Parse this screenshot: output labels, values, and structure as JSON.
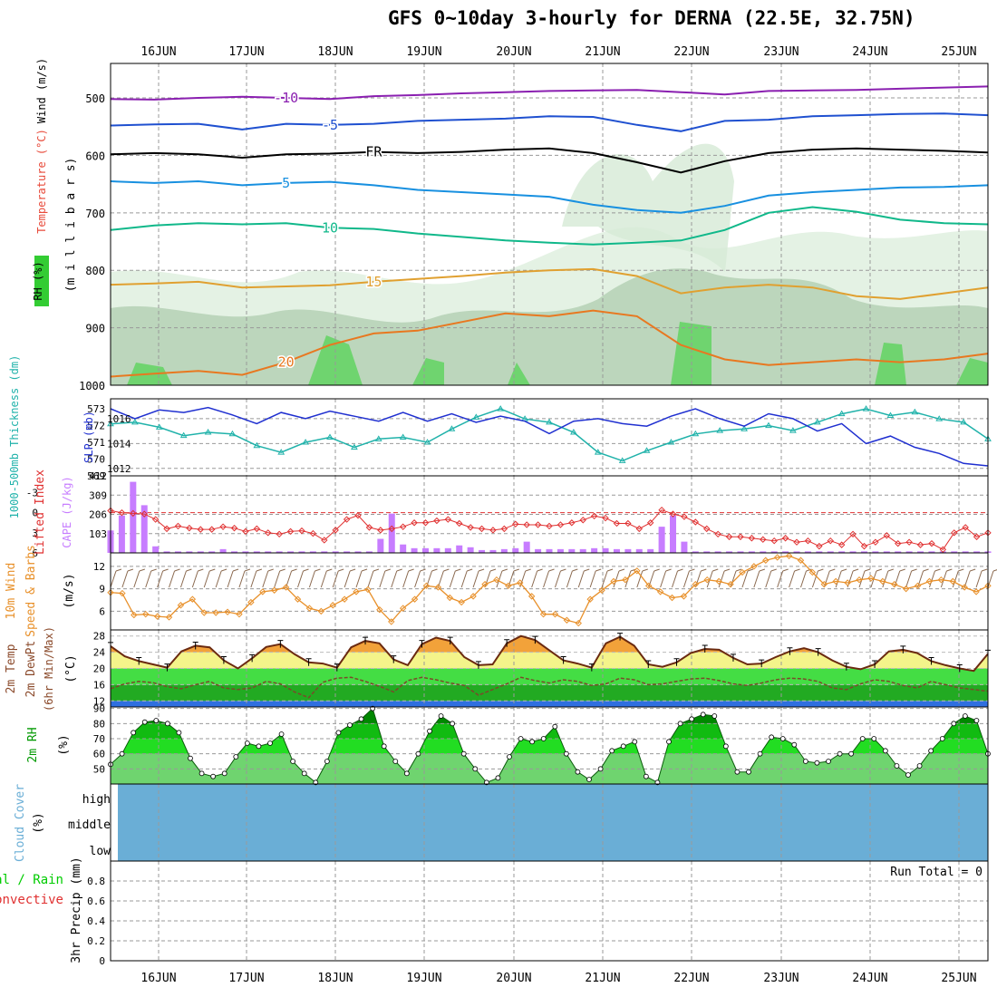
{
  "title": "GFS 0~10day 3-hourly for DERNA (22.5E, 32.75N)",
  "dates": [
    "16JUN",
    "17JUN",
    "18JUN",
    "19JUN",
    "20JUN",
    "21JUN",
    "22JUN",
    "23JUN",
    "24JUN",
    "25JUN"
  ],
  "colors": {
    "cyan": "#20b2aa",
    "blue": "#1f2fd0",
    "red": "#e03030",
    "purple": "#c77dff",
    "orange": "#e8902a",
    "brown": "#8b4a2b",
    "green": "#00cc00",
    "greenDark": "#009900",
    "cloudBlue": "#6aaed6",
    "grid": "#999999"
  },
  "chart_data": [
    {
      "type": "line",
      "panel": "upper-air",
      "labels": {
        "rh": "RH (%)",
        "temperature": "Temperature (°C)",
        "wind": "Wind (m/s)",
        "pressure": "(m i l l i b a r s)"
      },
      "y_ticks": [
        500,
        600,
        700,
        800,
        900,
        1000
      ],
      "ylim": [
        440,
        1000
      ],
      "isotherms": [
        {
          "label": "-10",
          "color": "#8a1fb0",
          "values": [
            502,
            503,
            500,
            498,
            500,
            502,
            497,
            495,
            492,
            490,
            488,
            487,
            486,
            490,
            494,
            488,
            487,
            486,
            484,
            482,
            480
          ]
        },
        {
          "label": "-5",
          "color": "#1f50d0",
          "values": [
            548,
            546,
            545,
            555,
            545,
            547,
            545,
            540,
            538,
            536,
            532,
            533,
            547,
            558,
            540,
            538,
            532,
            530,
            528,
            527,
            530
          ]
        },
        {
          "label": "FR",
          "color": "#000000",
          "values": [
            598,
            596,
            598,
            604,
            598,
            597,
            594,
            596,
            594,
            590,
            588,
            596,
            612,
            630,
            610,
            596,
            590,
            588,
            590,
            592,
            595
          ]
        },
        {
          "label": "5",
          "color": "#1890e0",
          "values": [
            645,
            648,
            645,
            652,
            648,
            646,
            652,
            660,
            664,
            668,
            672,
            686,
            695,
            700,
            688,
            670,
            664,
            660,
            656,
            655,
            652
          ]
        },
        {
          "label": "10",
          "color": "#10b88a",
          "values": [
            730,
            722,
            718,
            720,
            718,
            726,
            728,
            736,
            742,
            748,
            752,
            755,
            752,
            748,
            730,
            700,
            690,
            698,
            712,
            718,
            720
          ]
        },
        {
          "label": "15",
          "color": "#e0a030",
          "values": [
            825,
            823,
            820,
            830,
            828,
            826,
            820,
            815,
            810,
            804,
            800,
            798,
            810,
            840,
            830,
            825,
            830,
            845,
            850,
            840,
            830
          ]
        },
        {
          "label": "20",
          "color": "#e87820",
          "values": [
            985,
            980,
            975,
            982,
            960,
            930,
            910,
            905,
            890,
            875,
            880,
            870,
            880,
            930,
            955,
            965,
            960,
            955,
            960,
            955,
            945
          ]
        }
      ],
      "rh_shading_levels": [
        "70",
        "80",
        "90"
      ]
    },
    {
      "type": "line",
      "panel": "thickness-slp",
      "labels": {
        "thickness": "1000-500mb Thickness (dm)",
        "slp": "SLP (mb)"
      },
      "left_ticks": [
        "569",
        "570",
        "571",
        "572",
        "573"
      ],
      "right_ticks": [
        "1012",
        "1014",
        "1016"
      ],
      "thickness_ylim": [
        569,
        573.6
      ],
      "slp_ylim": [
        1011.4,
        1017.6
      ],
      "thickness": [
        572.1,
        572.2,
        571.9,
        571.4,
        571.6,
        571.5,
        570.8,
        570.4,
        571.0,
        571.3,
        570.7,
        571.2,
        571.3,
        571.0,
        571.8,
        572.5,
        573.0,
        572.4,
        572.2,
        571.6,
        570.4,
        569.9,
        570.5,
        571.0,
        571.5,
        571.7,
        571.8,
        572.0,
        571.7,
        572.2,
        572.7,
        573.0,
        572.6,
        572.8,
        572.4,
        572.2,
        571.2
      ],
      "slp": [
        1016.8,
        1016.0,
        1016.7,
        1016.5,
        1016.9,
        1016.3,
        1015.6,
        1016.5,
        1016.0,
        1016.6,
        1016.2,
        1015.8,
        1016.5,
        1015.8,
        1016.4,
        1015.7,
        1016.2,
        1015.8,
        1014.8,
        1015.8,
        1016.0,
        1015.6,
        1015.4,
        1016.2,
        1016.8,
        1016.0,
        1015.4,
        1016.4,
        1016.0,
        1015.0,
        1015.6,
        1014.0,
        1014.6,
        1013.7,
        1013.2,
        1012.4,
        1012.2
      ]
    },
    {
      "type": "bar",
      "panel": "cape-li",
      "labels": {
        "lifted_index": "Lifted Index",
        "cape": "CAPE (J/kg)"
      },
      "left_ticks": [
        "-3",
        "0",
        "3",
        "6"
      ],
      "right_ticks": [
        "103",
        "206",
        "309",
        "412"
      ],
      "cape_ylim": [
        0,
        412
      ],
      "li_ylim": [
        6,
        -5.5
      ],
      "cape": [
        120,
        200,
        380,
        255,
        35,
        8,
        8,
        8,
        8,
        8,
        20,
        8,
        8,
        8,
        8,
        8,
        8,
        8,
        8,
        8,
        8,
        8,
        8,
        8,
        75,
        210,
        45,
        25,
        25,
        25,
        25,
        40,
        30,
        15,
        15,
        20,
        25,
        60,
        20,
        20,
        20,
        20,
        20,
        25,
        25,
        20,
        20,
        20,
        20,
        140,
        200,
        60,
        8,
        8,
        8,
        8,
        8,
        8,
        8,
        8,
        8,
        8,
        8,
        8,
        8,
        8,
        8,
        8,
        8,
        8,
        8,
        8,
        8,
        8,
        8,
        8,
        8,
        8,
        8
      ],
      "lifted_index": [
        -0.3,
        0.0,
        0.1,
        0.2,
        1.0,
        2.4,
        2.0,
        2.3,
        2.5,
        2.5,
        2.1,
        2.3,
        2.8,
        2.4,
        3.0,
        3.2,
        2.8,
        2.7,
        3.1,
        4.1,
        2.6,
        1.0,
        0.4,
        2.2,
        2.6,
        2.4,
        2.1,
        1.5,
        1.5,
        1.2,
        1.0,
        1.6,
        2.2,
        2.4,
        2.6,
        2.4,
        1.7,
        1.8,
        1.8,
        2.0,
        1.8,
        1.5,
        1.1,
        0.5,
        0.8,
        1.6,
        1.6,
        2.4,
        1.5,
        -0.4,
        0.2,
        0.6,
        1.4,
        2.4,
        3.2,
        3.6,
        3.6,
        3.8,
        4.0,
        4.2,
        3.8,
        4.4,
        4.2,
        5.0,
        4.2,
        4.8,
        3.2,
        5.0,
        4.4,
        3.4,
        4.6,
        4.4,
        4.8,
        4.6,
        5.5,
        3.0,
        2.2,
        3.6,
        3.0
      ]
    },
    {
      "type": "line",
      "panel": "wind10m",
      "labels": {
        "title": "10m Wind",
        "subtitle": "Speed & Barbs",
        "unit": "(m/s)"
      },
      "y_ticks": [
        "6",
        "9",
        "12"
      ],
      "ylim": [
        3.5,
        13.8
      ],
      "speed": [
        8.5,
        8.4,
        5.5,
        5.6,
        5.3,
        5.2,
        6.8,
        7.6,
        5.8,
        5.8,
        5.9,
        5.6,
        7.2,
        8.6,
        8.8,
        9.2,
        7.6,
        6.4,
        6.0,
        6.8,
        7.6,
        8.6,
        8.9,
        6.2,
        4.6,
        6.4,
        7.6,
        9.4,
        9.2,
        7.8,
        7.2,
        8.0,
        9.6,
        10.2,
        9.4,
        9.8,
        8.0,
        5.6,
        5.6,
        4.8,
        4.4,
        7.6,
        8.8,
        10.0,
        10.2,
        11.4,
        9.4,
        8.6,
        7.8,
        8.0,
        9.6,
        10.2,
        10.0,
        9.6,
        11.2,
        12.0,
        12.8,
        13.2,
        13.4,
        12.8,
        11.2,
        9.6,
        10.0,
        9.8,
        10.2,
        10.4,
        10.0,
        9.6,
        9.0,
        9.4,
        10.0,
        10.2,
        10.0,
        9.2,
        8.6,
        9.4
      ]
    },
    {
      "type": "area",
      "panel": "temp2m",
      "labels": {
        "title": "2m Temp",
        "dewpoint": "2m DewPt",
        "subtitle": "(6hr Min/Max)",
        "unit": "(°C)"
      },
      "y_ticks": [
        "12",
        "16",
        "20",
        "24",
        "28"
      ],
      "ylim": [
        10.5,
        29.5
      ],
      "temperature": [
        25.5,
        23.0,
        21.8,
        21.0,
        20.2,
        24.2,
        25.6,
        25.2,
        22.0,
        20.0,
        22.5,
        25.3,
        26.0,
        23.5,
        21.5,
        21.2,
        20.2,
        25.2,
        26.8,
        26.2,
        22.2,
        20.8,
        26.0,
        27.6,
        26.8,
        22.8,
        20.8,
        21.0,
        26.2,
        28.0,
        27.0,
        24.5,
        22.0,
        21.2,
        20.2,
        26.2,
        27.8,
        25.6,
        21.0,
        20.4,
        21.5,
        23.8,
        24.8,
        24.6,
        22.6,
        21.0,
        21.2,
        22.8,
        24.2,
        25.0,
        24.0,
        22.0,
        20.4,
        19.8,
        21.0,
        24.2,
        24.6,
        23.8,
        21.8,
        20.8,
        20.0,
        19.4,
        23.6
      ],
      "dewpoint": [
        15.0,
        16.2,
        16.8,
        16.5,
        15.5,
        15.0,
        16.0,
        16.8,
        15.2,
        14.8,
        15.2,
        16.8,
        16.2,
        14.2,
        12.8,
        16.6,
        17.6,
        17.8,
        16.8,
        15.6,
        14.2,
        17.0,
        17.8,
        17.2,
        16.4,
        15.8,
        13.4,
        14.8,
        16.2,
        17.8,
        17.0,
        16.4,
        17.2,
        16.8,
        15.8,
        16.2,
        17.6,
        17.2,
        16.0,
        16.2,
        16.8,
        17.4,
        17.6,
        17.0,
        16.2,
        15.8,
        16.4,
        17.2,
        17.6,
        17.4,
        16.8,
        15.2,
        14.8,
        16.2,
        17.2,
        16.8,
        15.8,
        15.2,
        16.8,
        16.0,
        15.2,
        14.8,
        14.4
      ]
    },
    {
      "type": "area",
      "panel": "rh2m",
      "labels": {
        "title": "2m RH",
        "unit": "(%)"
      },
      "y_ticks": [
        "50",
        "60",
        "70",
        "80",
        "90"
      ],
      "ylim": [
        40,
        91
      ],
      "rh": [
        53,
        60,
        74,
        81,
        82,
        80,
        74,
        57,
        47,
        45,
        47,
        58,
        67,
        65,
        67,
        73,
        55,
        47,
        41,
        55,
        74,
        79,
        83,
        90,
        65,
        55,
        47,
        60,
        75,
        85,
        80,
        60,
        50,
        41,
        44,
        58,
        70,
        68,
        70,
        78,
        60,
        48,
        43,
        50,
        62,
        65,
        68,
        45,
        41,
        68,
        80,
        83,
        86,
        85,
        65,
        48,
        48,
        60,
        71,
        70,
        66,
        55,
        54,
        55,
        60,
        60,
        70,
        70,
        62,
        52,
        46,
        52,
        62,
        70,
        80,
        85,
        82,
        60
      ]
    },
    {
      "type": "area",
      "panel": "cloud",
      "labels": {
        "title": "Cloud Cover",
        "unit": "(%)",
        "high": "high",
        "middle": "middle",
        "low": "low"
      }
    },
    {
      "type": "bar",
      "panel": "precip",
      "labels": {
        "title": "3hr Precip (mm)",
        "total": "Total / Rain",
        "convective": "Convective",
        "run_total": "Run Total = 0"
      },
      "y_ticks": [
        "0",
        "0.2",
        "0.4",
        "0.6",
        "0.8"
      ],
      "ylim": [
        0,
        1.0
      ],
      "values": []
    }
  ]
}
